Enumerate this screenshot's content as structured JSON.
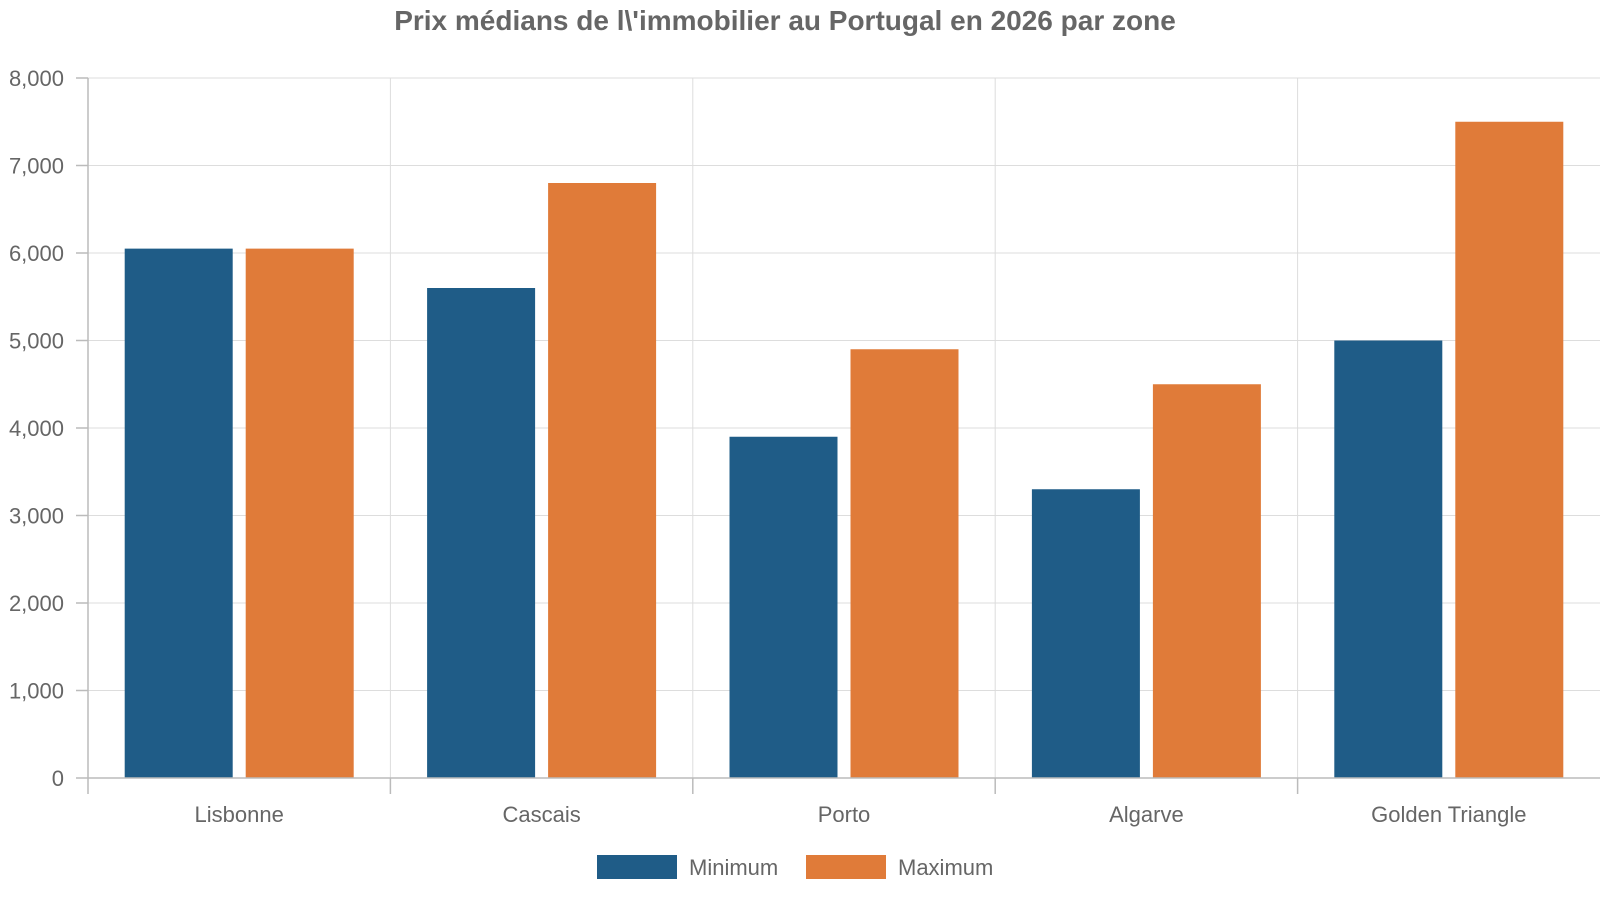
{
  "chart_data": {
    "type": "bar",
    "title": "Prix médians de l\\'immobilier au Portugal en 2026 par zone",
    "categories": [
      "Lisbonne",
      "Cascais",
      "Porto",
      "Algarve",
      "Golden Triangle"
    ],
    "series": [
      {
        "name": "Minimum",
        "color": "#1f5c87",
        "values": [
          6050,
          5600,
          3900,
          3300,
          5000
        ]
      },
      {
        "name": "Maximum",
        "color": "#e07b39",
        "values": [
          6050,
          6800,
          4900,
          4500,
          7500
        ]
      }
    ],
    "ylim": [
      0,
      8000
    ],
    "yticks": [
      "0",
      "1,000",
      "2,000",
      "3,000",
      "4,000",
      "5,000",
      "6,000",
      "7,000",
      "8,000"
    ],
    "grid": true,
    "legend_position": "bottom-center"
  }
}
